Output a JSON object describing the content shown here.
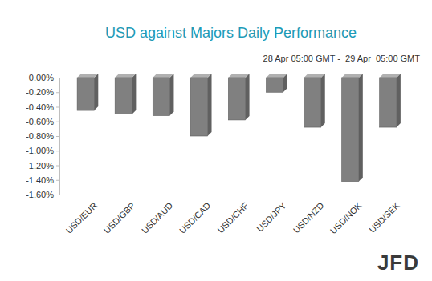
{
  "chart_data": {
    "type": "bar",
    "title": "USD against Majors Daily Performance",
    "subtitle": "28 Apr 05:00 GMT -  29 Apr  05:00 GMT",
    "watermark": "JFD",
    "categories": [
      "USD/EUR",
      "USD/GBP",
      "USD/AUD",
      "USD/CAD",
      "USD/CHF",
      "USD/JPY",
      "USD/NZD",
      "USD/NOK",
      "USD/SEK"
    ],
    "values": [
      -0.45,
      -0.5,
      -0.52,
      -0.8,
      -0.58,
      -0.2,
      -0.68,
      -1.42,
      -0.68
    ],
    "color": "#808080",
    "ylim": [
      -1.6,
      0
    ],
    "yticks": [
      {
        "value": 0,
        "label": "0.00%"
      },
      {
        "value": -0.2,
        "label": "-0.20%"
      },
      {
        "value": -0.4,
        "label": "-0.40%"
      },
      {
        "value": -0.6,
        "label": "-0.60%"
      },
      {
        "value": -0.8,
        "label": "-0.80%"
      },
      {
        "value": -1.0,
        "label": "-1.00%"
      },
      {
        "value": -1.2,
        "label": "-1.20%"
      },
      {
        "value": -1.4,
        "label": "-1.40%"
      },
      {
        "value": -1.6,
        "label": "-1.60%"
      }
    ],
    "grid": false
  }
}
